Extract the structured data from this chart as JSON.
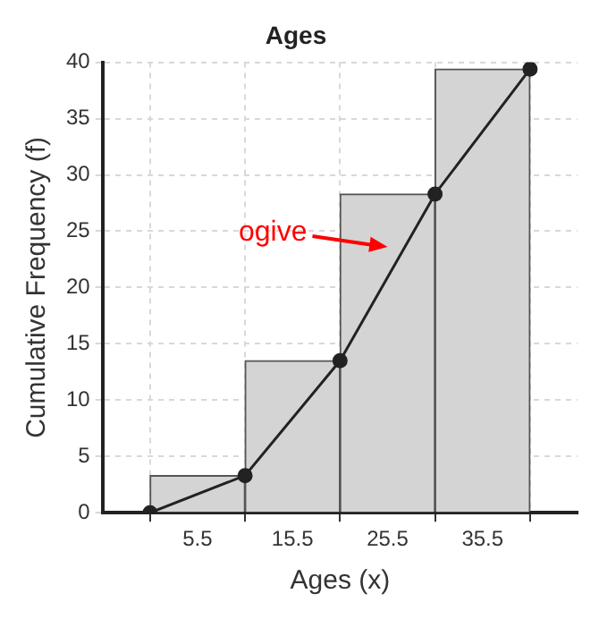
{
  "chart_data": {
    "type": "histogram",
    "title": "Ages",
    "xlabel": "Ages (x)",
    "ylabel": "Cumulative Frequency (f)",
    "bins": [
      0.5,
      10.5,
      20.5,
      30.5,
      40.5
    ],
    "values": [
      3.3,
      13.5,
      28.3,
      39.4
    ],
    "color": "#d4d4d4",
    "series": [
      {
        "type": "line",
        "color": "#222222",
        "x": [
          0.5,
          10.5,
          20.5,
          30.5,
          40.5
        ],
        "values": [
          0,
          3.3,
          13.5,
          28.3,
          39.4
        ]
      }
    ],
    "annotations": [
      "ogive"
    ],
    "xlim": [
      -4.5,
      45.5
    ],
    "xticks": [
      5.5,
      15.5,
      25.5,
      35.5
    ],
    "ylim": [
      0,
      40
    ],
    "yticks": [
      0,
      5,
      10,
      15,
      20,
      25,
      30,
      35,
      40
    ],
    "grid": true,
    "marker": "circle",
    "line_style": "solid",
    "legend": false
  }
}
